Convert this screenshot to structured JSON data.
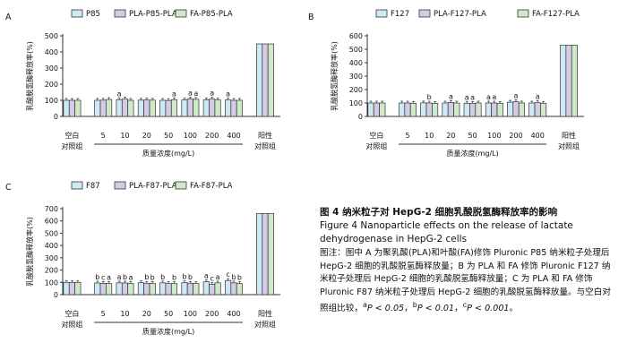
{
  "figure": {
    "caption_title_zh": "图 4   纳米粒子对 HepG-2 细胞乳酸脱氢酶释放率的影响",
    "caption_title_en": "Figure 4   Nanoparticle effects on the release of lactate dehydrogenase in HepG-2 cells",
    "note_label": "图注：",
    "note_text": "图中 A 为聚乳酸(PLA)和叶酸(FA)修饰 Pluronic P85 纳米粒子处理后 HepG-2 细胞的乳酸脱氢酶释放量；B 为 PLA 和 FA 修饰 Pluronic F127 纳米粒子处理后 HepG-2 细胞的乳酸脱氢酶释放量；C 为 PLA 和 FA 修饰 Pluronic F87 纳米粒子处理后 HepG-2 细胞的乳酸脱氢酶释放量。与空白对照组比较，",
    "sig_a": "P < 0.05",
    "sig_b": "P < 0.01",
    "sig_c": "P < 0.001",
    "sig_sep": "，",
    "sig_end": "。"
  },
  "colors": {
    "series1": "#cde9f5",
    "series2": "#d4cbe6",
    "series3": "#cfe9c9",
    "axis": "#333333"
  },
  "chart_data": [
    {
      "panel_label": "A",
      "type": "bar",
      "ylabel": "乳酸脱氢酶释放率(%)",
      "ylim": [
        0,
        500
      ],
      "yticks": [
        0,
        100,
        200,
        300,
        400,
        500
      ],
      "categories": [
        "空白对照组",
        "5",
        "10",
        "20",
        "50",
        "100",
        "200",
        "400",
        "阳性对照组"
      ],
      "xlabel": "质量浓度(mg/L)",
      "series": [
        {
          "name": "P85",
          "values": [
            100,
            100,
            104,
            101,
            100,
            102,
            103,
            102,
            450
          ]
        },
        {
          "name": "PLA-P85-PLA",
          "values": [
            100,
            101,
            108,
            102,
            99,
            108,
            108,
            100,
            450
          ]
        },
        {
          "name": "FA-P85-PLA",
          "values": [
            100,
            105,
            100,
            101,
            104,
            106,
            102,
            100,
            450
          ]
        }
      ],
      "annotations": [
        {
          "category": "10",
          "series": "P85",
          "label": "a"
        },
        {
          "category": "50",
          "series": "FA-P85-PLA",
          "label": "a"
        },
        {
          "category": "100",
          "series": "PLA-P85-PLA",
          "label": "a"
        },
        {
          "category": "100",
          "series": "FA-P85-PLA",
          "label": "a"
        },
        {
          "category": "200",
          "series": "PLA-P85-PLA",
          "label": "a"
        },
        {
          "category": "400",
          "series": "P85",
          "label": "a"
        }
      ]
    },
    {
      "panel_label": "B",
      "type": "bar",
      "ylabel": "乳酸脱氢酶释放率(%)",
      "ylim": [
        0,
        600
      ],
      "yticks": [
        0,
        100,
        200,
        300,
        400,
        500,
        600
      ],
      "categories": [
        "空白对照组",
        "5",
        "10",
        "20",
        "50",
        "100",
        "200",
        "400",
        "阳性对照组"
      ],
      "xlabel": "质量浓度(mg/L)",
      "series": [
        {
          "name": "F127",
          "values": [
            100,
            100,
            101,
            100,
            98,
            100,
            106,
            100,
            530
          ]
        },
        {
          "name": "PLA-F127-PLA",
          "values": [
            100,
            100,
            100,
            104,
            98,
            100,
            110,
            103,
            530
          ]
        },
        {
          "name": "FA-F127-PLA",
          "values": [
            100,
            98,
            97,
            100,
            100,
            98,
            100,
            98,
            530
          ]
        }
      ],
      "annotations": [
        {
          "category": "10",
          "series": "PLA-F127-PLA",
          "label": "b"
        },
        {
          "category": "20",
          "series": "PLA-F127-PLA",
          "label": "a"
        },
        {
          "category": "50",
          "series": "F127",
          "label": "a"
        },
        {
          "category": "50",
          "series": "PLA-F127-PLA",
          "label": "a"
        },
        {
          "category": "100",
          "series": "F127",
          "label": "a"
        },
        {
          "category": "100",
          "series": "PLA-F127-PLA",
          "label": "a"
        },
        {
          "category": "200",
          "series": "PLA-F127-PLA",
          "label": "a"
        },
        {
          "category": "400",
          "series": "PLA-F127-PLA",
          "label": "a"
        }
      ]
    },
    {
      "panel_label": "C",
      "type": "bar",
      "ylabel": "乳酸脱氢酶释放率(%)",
      "ylim": [
        0,
        700
      ],
      "yticks": [
        0,
        100,
        200,
        300,
        400,
        500,
        600,
        700
      ],
      "categories": [
        "空白对照组",
        "5",
        "10",
        "20",
        "50",
        "100",
        "200",
        "400",
        "阳性对照组"
      ],
      "xlabel": "质量浓度(mg/L)",
      "series": [
        {
          "name": "F87",
          "values": [
            100,
            95,
            96,
            97,
            96,
            97,
            105,
            115,
            660
          ]
        },
        {
          "name": "PLA-F87-PLA",
          "values": [
            100,
            92,
            95,
            93,
            90,
            93,
            85,
            96,
            660
          ]
        },
        {
          "name": "FA-F87-PLA",
          "values": [
            100,
            90,
            91,
            92,
            90,
            91,
            96,
            90,
            660
          ]
        }
      ],
      "annotations": [
        {
          "category": "5",
          "series": "F87",
          "label": "b"
        },
        {
          "category": "5",
          "series": "PLA-F87-PLA",
          "label": "c"
        },
        {
          "category": "5",
          "series": "FA-F87-PLA",
          "label": "a"
        },
        {
          "category": "10",
          "series": "F87",
          "label": "a"
        },
        {
          "category": "10",
          "series": "PLA-F87-PLA",
          "label": "b"
        },
        {
          "category": "10",
          "series": "FA-F87-PLA",
          "label": "a"
        },
        {
          "category": "20",
          "series": "PLA-F87-PLA",
          "label": "b"
        },
        {
          "category": "20",
          "series": "FA-F87-PLA",
          "label": "b"
        },
        {
          "category": "50",
          "series": "F87",
          "label": "b"
        },
        {
          "category": "50",
          "series": "FA-F87-PLA",
          "label": "b"
        },
        {
          "category": "100",
          "series": "F87",
          "label": "b"
        },
        {
          "category": "100",
          "series": "PLA-F87-PLA",
          "label": "b"
        },
        {
          "category": "200",
          "series": "F87",
          "label": "a"
        },
        {
          "category": "200",
          "series": "PLA-F87-PLA",
          "label": "c"
        },
        {
          "category": "200",
          "series": "FA-F87-PLA",
          "label": "a"
        },
        {
          "category": "400",
          "series": "F87",
          "label": "c"
        },
        {
          "category": "400",
          "series": "PLA-F87-PLA",
          "label": "b"
        },
        {
          "category": "400",
          "series": "FA-F87-PLA",
          "label": "b"
        }
      ]
    }
  ]
}
